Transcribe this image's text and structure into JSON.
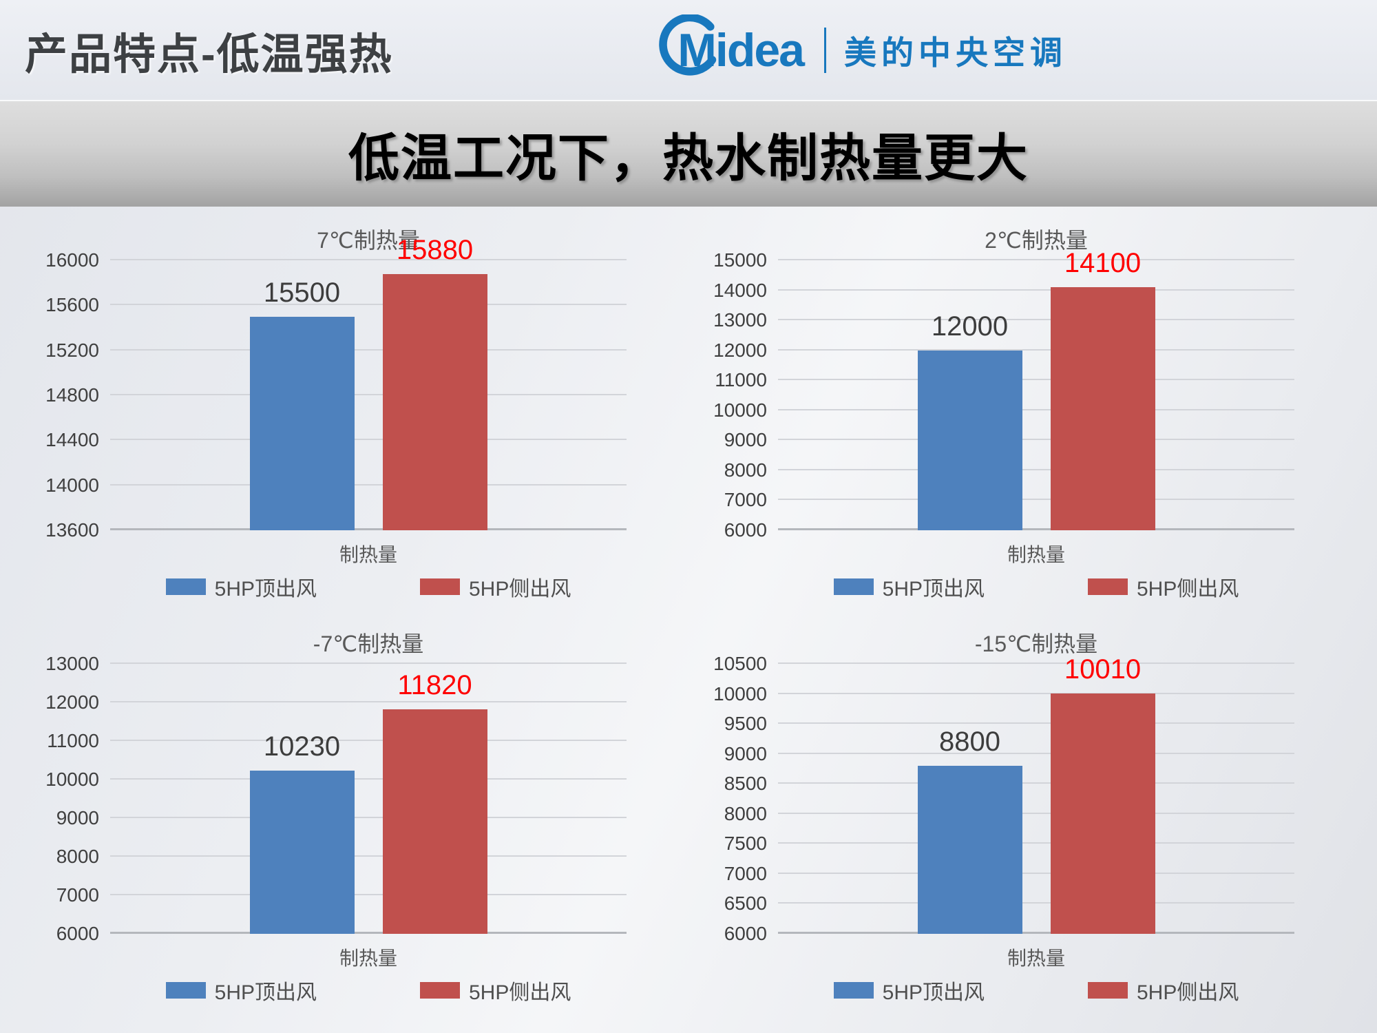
{
  "header": {
    "title": "产品特点-低温强热",
    "logo": {
      "wordmark": "Midea",
      "cn_name": "美的中央空调",
      "brand_color": "#1878be"
    }
  },
  "banner": {
    "title": "低温工况下，热水制热量更大"
  },
  "chart_data": [
    {
      "type": "bar",
      "title": "7℃制热量",
      "xlabel": "制热量",
      "categories": [
        "制热量"
      ],
      "ylim": [
        13600,
        16000
      ],
      "ystep": 400,
      "grid": true,
      "legend_position": "bottom",
      "series": [
        {
          "name": "5HP顶出风",
          "color": "#4e81bd",
          "values": [
            15500
          ],
          "label_color": "#3d3d3d"
        },
        {
          "name": "5HP侧出风",
          "color": "#c0504d",
          "values": [
            15880
          ],
          "label_color": "#ff0000"
        }
      ]
    },
    {
      "type": "bar",
      "title": "2℃制热量",
      "xlabel": "制热量",
      "categories": [
        "制热量"
      ],
      "ylim": [
        6000,
        15000
      ],
      "ystep": 1000,
      "grid": true,
      "legend_position": "bottom",
      "series": [
        {
          "name": "5HP顶出风",
          "color": "#4e81bd",
          "values": [
            12000
          ],
          "label_color": "#3d3d3d"
        },
        {
          "name": "5HP侧出风",
          "color": "#c0504d",
          "values": [
            14100
          ],
          "label_color": "#ff0000"
        }
      ]
    },
    {
      "type": "bar",
      "title": "-7℃制热量",
      "xlabel": "制热量",
      "categories": [
        "制热量"
      ],
      "ylim": [
        6000,
        13000
      ],
      "ystep": 1000,
      "grid": true,
      "legend_position": "bottom",
      "series": [
        {
          "name": "5HP顶出风",
          "color": "#4e81bd",
          "values": [
            10230
          ],
          "label_color": "#3d3d3d"
        },
        {
          "name": "5HP侧出风",
          "color": "#c0504d",
          "values": [
            11820
          ],
          "label_color": "#ff0000"
        }
      ]
    },
    {
      "type": "bar",
      "title": "-15℃制热量",
      "xlabel": "制热量",
      "categories": [
        "制热量"
      ],
      "ylim": [
        6000,
        10500
      ],
      "ystep": 500,
      "grid": true,
      "legend_position": "bottom",
      "series": [
        {
          "name": "5HP顶出风",
          "color": "#4e81bd",
          "values": [
            8800
          ],
          "label_color": "#3d3d3d"
        },
        {
          "name": "5HP侧出风",
          "color": "#c0504d",
          "values": [
            10010
          ],
          "label_color": "#ff0000"
        }
      ]
    }
  ]
}
